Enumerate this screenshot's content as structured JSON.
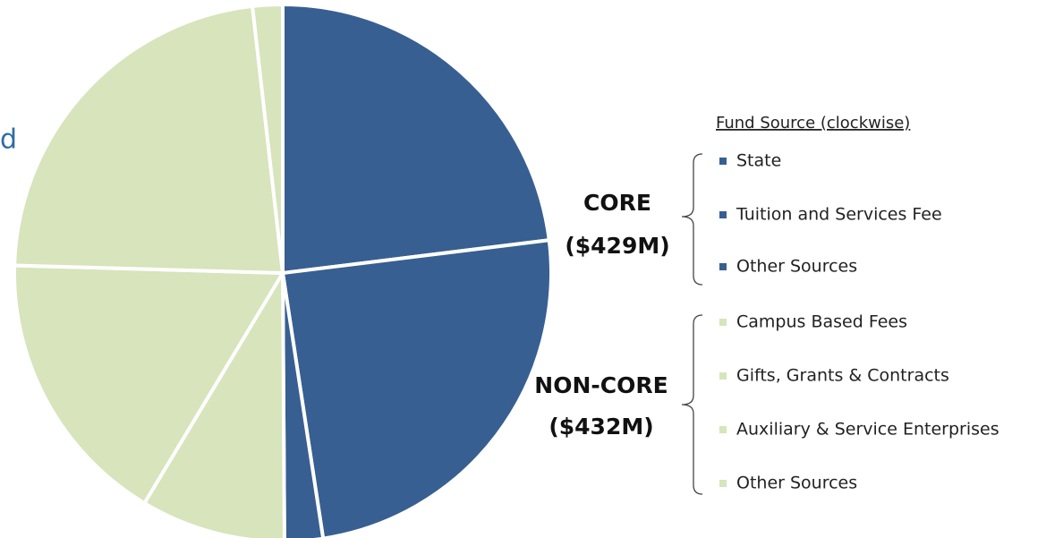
{
  "chart_data": {
    "type": "pie",
    "annotation": "d",
    "legend_title": "Fund Source (clockwise)",
    "categories": [
      "State",
      "Tuition and Services Fee",
      "Other Sources",
      "Campus Based Fees",
      "Gifts, Grants & Contracts",
      "Auxiliary & Service Enterprises",
      "Other Sources"
    ],
    "values": [
      23,
      24.5,
      2.3,
      8.7,
      16.8,
      22.7,
      1.8
    ],
    "colors": [
      "#375f91",
      "#375f91",
      "#375f91",
      "#d7e4bc",
      "#d7e4bc",
      "#d7e4bc",
      "#d7e4bc"
    ],
    "groups": [
      {
        "label": "CORE",
        "amount": "($429M)"
      },
      {
        "label": "NON-CORE",
        "amount": "($432M)"
      }
    ]
  }
}
